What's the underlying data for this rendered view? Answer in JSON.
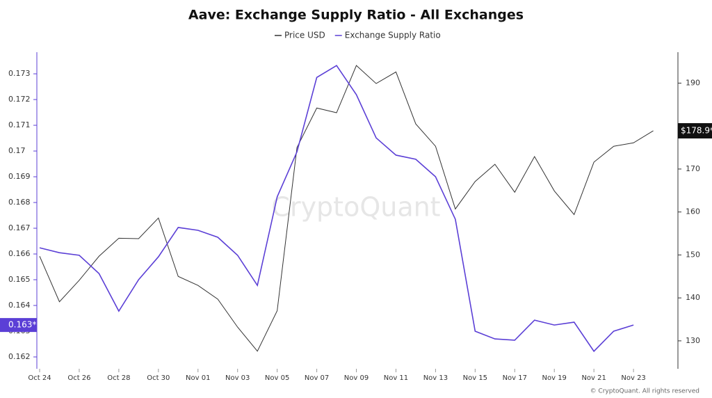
{
  "chart_data": {
    "type": "line",
    "title": "Aave: Exchange Supply Ratio - All Exchanges",
    "categories": [
      "Oct 24",
      null,
      "Oct 26",
      null,
      "Oct 28",
      null,
      "Oct 30",
      null,
      "Nov 01",
      null,
      "Nov 03",
      null,
      "Nov 05",
      null,
      "Nov 07",
      null,
      "Nov 09",
      null,
      "Nov 11",
      null,
      "Nov 13",
      null,
      "Nov 15",
      null,
      "Nov 17",
      null,
      "Nov 19",
      null,
      "Nov 21",
      null,
      "Nov 23",
      null
    ],
    "series": [
      {
        "name": "Price USD",
        "color": "#333333",
        "axis": "y2",
        "values": [
          149.7,
          139.1,
          144.1,
          149.7,
          153.9,
          153.8,
          158.6,
          145.0,
          142.9,
          139.7,
          133.2,
          127.6,
          137.0,
          175.0,
          184.2,
          183.1,
          194.1,
          189.9,
          192.6,
          180.5,
          175.3,
          160.7,
          167.1,
          171.1,
          164.6,
          172.9,
          164.9,
          159.4,
          171.6,
          175.3,
          176.1,
          178.9
        ]
      },
      {
        "name": "Exchange Supply Ratio",
        "color": "#5b3fd6",
        "values": [
          0.16624,
          0.16605,
          0.16595,
          0.16524,
          0.16378,
          0.165,
          0.16589,
          0.16703,
          0.16692,
          0.16665,
          0.16595,
          0.16478,
          0.16822,
          0.16997,
          0.17286,
          0.17332,
          0.17219,
          0.17051,
          0.16984,
          0.16968,
          0.169,
          0.16735,
          0.163,
          0.1627,
          0.16265,
          0.16343,
          0.16324,
          0.16335,
          0.16222,
          0.163,
          0.16324,
          null
        ]
      }
    ],
    "ylim": [
      0.16154,
      0.17384
    ],
    "yticks": [
      0.162,
      0.163,
      0.164,
      0.165,
      0.166,
      0.167,
      0.168,
      0.169,
      0.17,
      0.171,
      0.172,
      0.173
    ],
    "y2lim": [
      123.5,
      197.2
    ],
    "y2ticks": [
      130,
      140,
      150,
      160,
      170,
      190
    ],
    "y_current_label": "0.163*",
    "y2_current_label": "$178.9*",
    "watermark": "CryptoQuant",
    "footer": "© CryptoQuant. All rights reserved"
  }
}
